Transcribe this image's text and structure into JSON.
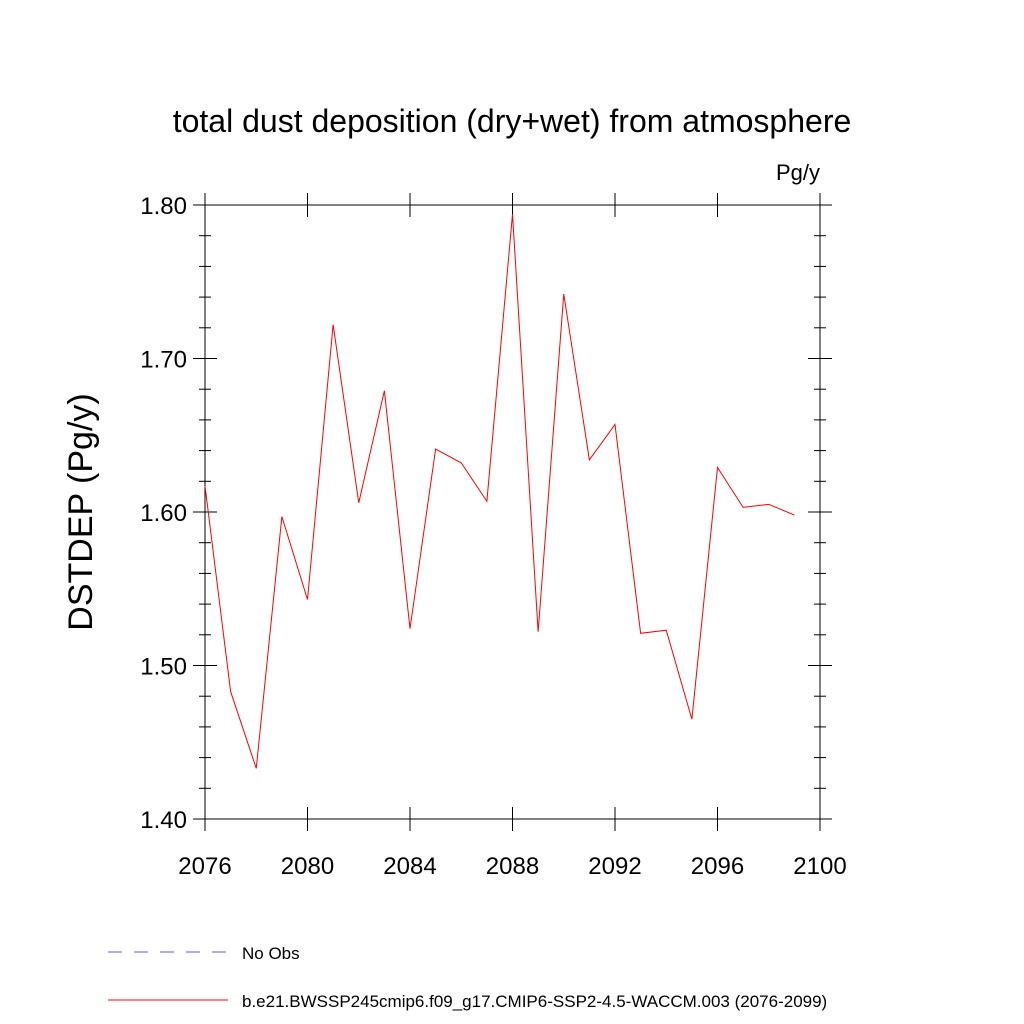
{
  "chart_data": {
    "type": "line",
    "title": "total dust deposition (dry+wet) from atmosphere",
    "units_label": "Pg/y",
    "ylabel": "DSTDEP  (Pg/y)",
    "xlabel": "",
    "xlim": [
      2076,
      2100
    ],
    "ylim": [
      1.4,
      1.8
    ],
    "x_ticks": [
      2076,
      2080,
      2084,
      2088,
      2092,
      2096,
      2100
    ],
    "x_tick_labels": [
      "2076",
      "2080",
      "2084",
      "2088",
      "2092",
      "2096",
      "2100"
    ],
    "y_ticks": [
      1.4,
      1.5,
      1.6,
      1.7,
      1.8
    ],
    "y_tick_labels": [
      "1.40",
      "1.50",
      "1.60",
      "1.70",
      "1.80"
    ],
    "grid": false,
    "legend_position": "bottom",
    "series": [
      {
        "name": "b.e21.BWSSP245cmip6.f09_g17.CMIP6-SSP2-4.5-WACCM.003 (2076-2099)",
        "color": "#ff0000",
        "style": "solid",
        "x": [
          2076,
          2077,
          2078,
          2079,
          2080,
          2081,
          2082,
          2083,
          2084,
          2085,
          2086,
          2087,
          2088,
          2089,
          2090,
          2091,
          2092,
          2093,
          2094,
          2095,
          2096,
          2097,
          2098,
          2099
        ],
        "values": [
          1.617,
          1.483,
          1.433,
          1.597,
          1.543,
          1.722,
          1.606,
          1.679,
          1.524,
          1.641,
          1.632,
          1.607,
          1.794,
          1.522,
          1.742,
          1.634,
          1.657,
          1.521,
          1.523,
          1.465,
          1.629,
          1.603,
          1.605,
          1.598
        ]
      }
    ],
    "legend": [
      {
        "label": "No Obs",
        "color": "#6a5acd",
        "style": "dashed"
      },
      {
        "label": "b.e21.BWSSP245cmip6.f09_g17.CMIP6-SSP2-4.5-WACCM.003 (2076-2099)",
        "color": "#ff0000",
        "style": "solid"
      }
    ]
  }
}
